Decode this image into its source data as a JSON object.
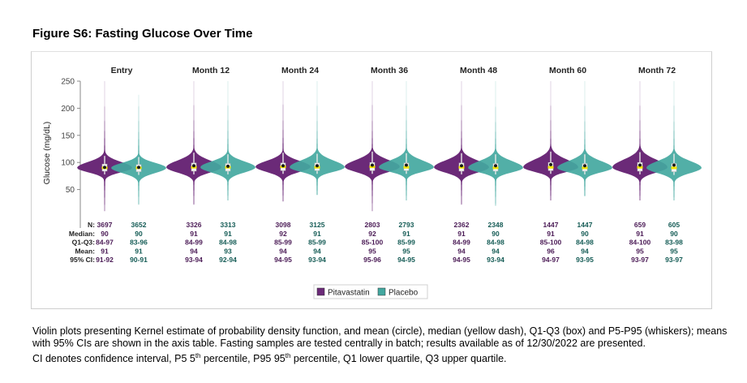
{
  "figure_title": "Figure S6: Fasting Glucose Over Time",
  "caption": {
    "line1": "Violin plots presenting Kernel estimate of probability density function, and mean (circle), median (yellow dash), Q1-Q3 (box) and P5-P95 (whiskers); means with 95% CIs are shown in the axis table. Fasting samples are tested centrally in batch; results available as of 12/30/2022 are presented.",
    "line2_a": "CI denotes confidence interval, P5 5",
    "line2_sup1": "th",
    "line2_b": " percentile, P95 95",
    "line2_sup2": "th",
    "line2_c": " percentile, Q1 lower quartile, Q3 upper quartile."
  },
  "colors": {
    "pitavastatin": "#6b2a78",
    "placebo": "#43a8a0",
    "median": "#f2e600",
    "label_text": "#4a1a55",
    "placebo_text": "#145b55"
  },
  "chart_data": {
    "type": "violin",
    "ylabel": "Glucose (mg/dL)",
    "ylim": [
      0,
      250
    ],
    "yticks": [
      50,
      100,
      150,
      200,
      250
    ],
    "grid": false,
    "legend_position": "bottom",
    "timepoints": [
      "Entry",
      "Month 12",
      "Month 24",
      "Month 36",
      "Month 48",
      "Month 60",
      "Month 72"
    ],
    "table_row_labels": [
      "N:",
      "Median:",
      "Q1-Q3:",
      "Mean:",
      "95% CI:"
    ],
    "series": [
      {
        "name": "Pitavastatin",
        "color": "#6b2a78",
        "n": [
          "3697",
          "3326",
          "3098",
          "2803",
          "2362",
          "1447",
          "659"
        ],
        "median": [
          "90",
          "91",
          "92",
          "92",
          "91",
          "91",
          "91"
        ],
        "q1q3": [
          "84-97",
          "84-99",
          "85-99",
          "85-100",
          "84-99",
          "85-100",
          "84-100"
        ],
        "mean": [
          "91",
          "94",
          "94",
          "95",
          "94",
          "96",
          "95"
        ],
        "ci95": [
          "91-92",
          "93-94",
          "94-95",
          "95-96",
          "94-95",
          "94-97",
          "93-97"
        ],
        "min": [
          10,
          22,
          28,
          10,
          22,
          30,
          30
        ],
        "max": [
          250,
          250,
          250,
          250,
          250,
          250,
          250
        ],
        "median_value": [
          90,
          91,
          92,
          92,
          91,
          91,
          91
        ],
        "q1": [
          84,
          84,
          85,
          85,
          84,
          85,
          84
        ],
        "q3": [
          97,
          99,
          99,
          100,
          99,
          100,
          100
        ],
        "mean_value": [
          91,
          94,
          94,
          95,
          94,
          96,
          95
        ],
        "p5": [
          78,
          78,
          79,
          79,
          78,
          79,
          78
        ],
        "p95": [
          112,
          118,
          118,
          120,
          117,
          120,
          119
        ]
      },
      {
        "name": "Placebo",
        "color": "#43a8a0",
        "n": [
          "3652",
          "3313",
          "3125",
          "2793",
          "2348",
          "1447",
          "605"
        ],
        "median": [
          "90",
          "91",
          "91",
          "91",
          "90",
          "90",
          "90"
        ],
        "q1q3": [
          "83-96",
          "84-98",
          "85-99",
          "85-99",
          "84-98",
          "84-98",
          "83-98"
        ],
        "mean": [
          "91",
          "93",
          "94",
          "95",
          "94",
          "94",
          "95"
        ],
        "ci95": [
          "90-91",
          "92-94",
          "93-94",
          "94-95",
          "93-94",
          "93-95",
          "93-97"
        ],
        "min": [
          22,
          30,
          40,
          30,
          20,
          38,
          30
        ],
        "max": [
          225,
          250,
          250,
          250,
          250,
          250,
          250
        ],
        "median_value": [
          90,
          91,
          91,
          91,
          90,
          90,
          90
        ],
        "q1": [
          83,
          84,
          85,
          85,
          84,
          84,
          83
        ],
        "q3": [
          96,
          98,
          99,
          99,
          98,
          98,
          98
        ],
        "mean_value": [
          91,
          93,
          94,
          95,
          94,
          94,
          95
        ],
        "p5": [
          77,
          78,
          79,
          79,
          78,
          78,
          77
        ],
        "p95": [
          110,
          115,
          116,
          117,
          115,
          115,
          116
        ]
      }
    ]
  }
}
